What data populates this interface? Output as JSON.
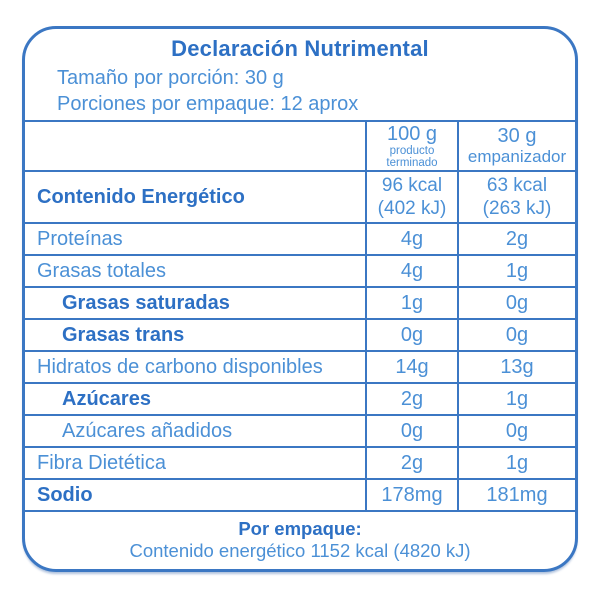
{
  "header": {
    "title": "Declaración Nutrimental",
    "serving_size": "Tamaño por porción: 30 g",
    "servings_per_pack": "Porciones por empaque: 12 aprox"
  },
  "columns": {
    "col1": {
      "amount": "100 g",
      "sub": "producto\nterminado"
    },
    "col2": {
      "amount": "30 g",
      "sub": "empanizador"
    }
  },
  "rows": [
    {
      "label": "Contenido Energético",
      "v100": "96 kcal\n(402 kJ)",
      "v30": "63 kcal\n(263 kJ)"
    },
    {
      "label": "Proteínas",
      "v100": "4g",
      "v30": "2g"
    },
    {
      "label": "Grasas totales",
      "v100": "4g",
      "v30": "1g"
    },
    {
      "label": "Grasas saturadas",
      "v100": "1g",
      "v30": "0g"
    },
    {
      "label": "Grasas trans",
      "v100": "0g",
      "v30": "0g"
    },
    {
      "label": "Hidratos de carbono disponibles",
      "v100": "14g",
      "v30": "13g"
    },
    {
      "label": "Azúcares",
      "v100": "2g",
      "v30": "1g"
    },
    {
      "label": "Azúcares añadidos",
      "v100": "0g",
      "v30": "0g"
    },
    {
      "label": "Fibra Dietética",
      "v100": "2g",
      "v30": "1g"
    },
    {
      "label": "Sodio",
      "v100": "178mg",
      "v30": "181mg"
    }
  ],
  "footer": {
    "heading": "Por empaque:",
    "text": "Contenido energético 1152 kcal (4820 kJ)"
  },
  "colors": {
    "border": "#3b77c3",
    "text": "#4b90d6",
    "bold_text": "#2d70c4",
    "background": "#ffffff"
  }
}
